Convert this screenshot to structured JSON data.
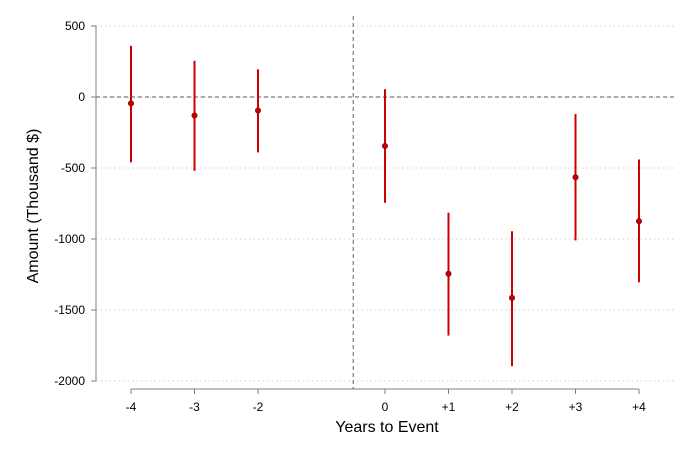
{
  "chart_data": {
    "type": "scatter",
    "subtype": "event-study coefficient plot with confidence intervals",
    "title": "",
    "xlabel": "Years to Event",
    "ylabel": "Amount (Thousand $)",
    "categories": [
      "-4",
      "-3",
      "-2",
      "0",
      "+1",
      "+2",
      "+3",
      "+4"
    ],
    "x": [
      -4,
      -3,
      -2,
      0,
      1,
      2,
      3,
      4
    ],
    "estimates": [
      -45,
      -130,
      -95,
      -345,
      -1245,
      -1415,
      -565,
      -875
    ],
    "ci_upper": [
      360,
      255,
      195,
      55,
      -815,
      -945,
      -120,
      -440
    ],
    "ci_lower": [
      -460,
      -520,
      -390,
      -745,
      -1680,
      -1895,
      -1010,
      -1305
    ],
    "ylim": [
      -2000,
      500
    ],
    "xlim": [
      -4.5,
      4.5
    ],
    "yticks": [
      500,
      0,
      -500,
      -1000,
      -1500,
      -2000
    ],
    "ytick_labels": [
      "500",
      "0",
      "-500",
      "-1000",
      "-1500",
      "-2000"
    ],
    "horizontal_reference": 0,
    "vertical_reference": -0.5,
    "grid": "horizontal dotted",
    "legend": "none",
    "colors": {
      "marker": "#cc0000",
      "ci": "#cc0000",
      "reference": "#7a7a7a",
      "grid": "#cfcfcf",
      "axis": "#7f7f7f"
    }
  }
}
